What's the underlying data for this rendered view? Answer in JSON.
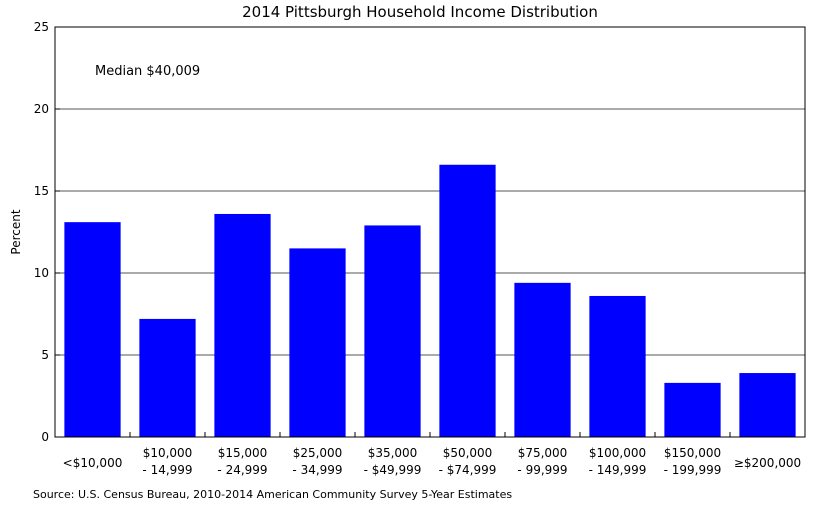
{
  "chart_data": {
    "type": "bar",
    "title": "2014 Pittsburgh Household Income Distribution",
    "ylabel": "Percent",
    "xlabel": "",
    "ylim": [
      0,
      25
    ],
    "yticks": [
      0,
      5,
      10,
      15,
      20,
      25
    ],
    "grid": "horizontal",
    "bar_color": "#0000ff",
    "categories": [
      [
        "<$10,000"
      ],
      [
        "$10,000",
        "- 14,999"
      ],
      [
        "$15,000",
        "- 24,999"
      ],
      [
        "$25,000",
        "- 34,999"
      ],
      [
        "$35,000",
        "- $49,999"
      ],
      [
        "$50,000",
        "- $74,999"
      ],
      [
        "$75,000",
        "- 99,999"
      ],
      [
        "$100,000",
        "- 149,999"
      ],
      [
        "$150,000",
        "- 199,999"
      ],
      [
        "≥$200,000"
      ]
    ],
    "values": [
      13.1,
      7.2,
      13.6,
      11.5,
      12.9,
      16.6,
      9.4,
      8.6,
      3.3,
      3.9
    ],
    "annotation": "Median $40,009",
    "source": "Source: U.S. Census Bureau, 2010-2014 American Community Survey 5-Year Estimates"
  }
}
